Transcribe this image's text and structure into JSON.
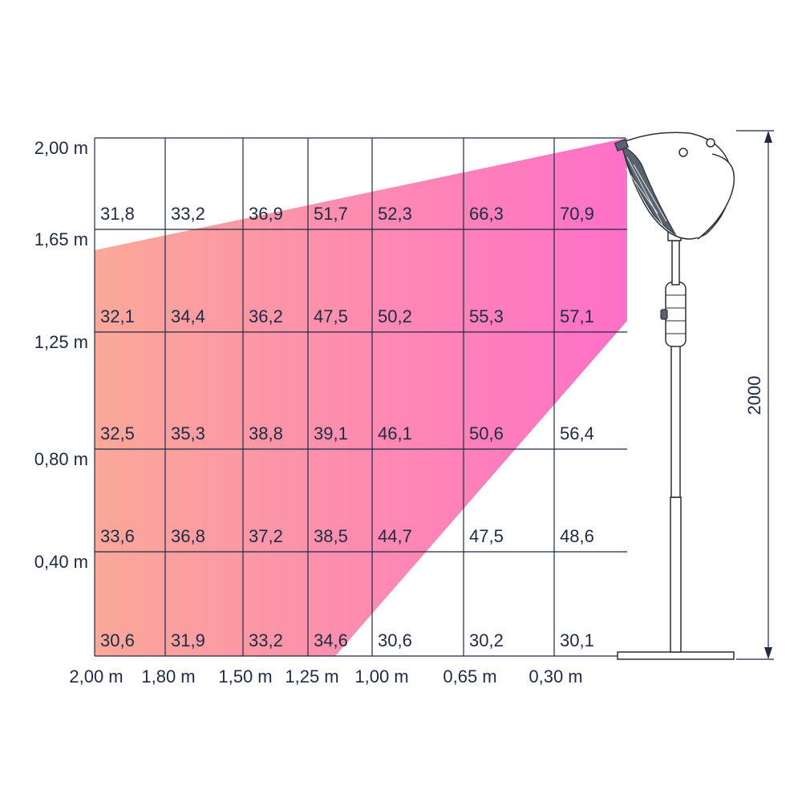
{
  "y_axis_labels": [
    "2,00 m",
    "1,65 m",
    "1,25 m",
    "0,80 m",
    "0,40 m"
  ],
  "x_axis_labels": [
    "2,00 m",
    "1,80 m",
    "1,50 m",
    "1,25 m",
    "1,00 m",
    "0,65 m",
    "0,30 m"
  ],
  "height_label": "2000",
  "rows": [
    [
      "31,8",
      "33,2",
      "36,9",
      "51,7",
      "52,3",
      "66,3",
      "70,9"
    ],
    [
      "32,1",
      "34,4",
      "36,2",
      "47,5",
      "50,2",
      "55,3",
      "57,1"
    ],
    [
      "32,5",
      "35,3",
      "38,8",
      "39,1",
      "46,1",
      "50,6",
      "56,4"
    ],
    [
      "33,6",
      "36,8",
      "37,2",
      "38,5",
      "44,7",
      "47,5",
      "48,6"
    ],
    [
      "30,6",
      "31,9",
      "33,2",
      "34,6",
      "30,6",
      "30,2",
      "30,1"
    ]
  ],
  "beam_colors": {
    "start": "#fba898",
    "end": "#ff70c8"
  }
}
